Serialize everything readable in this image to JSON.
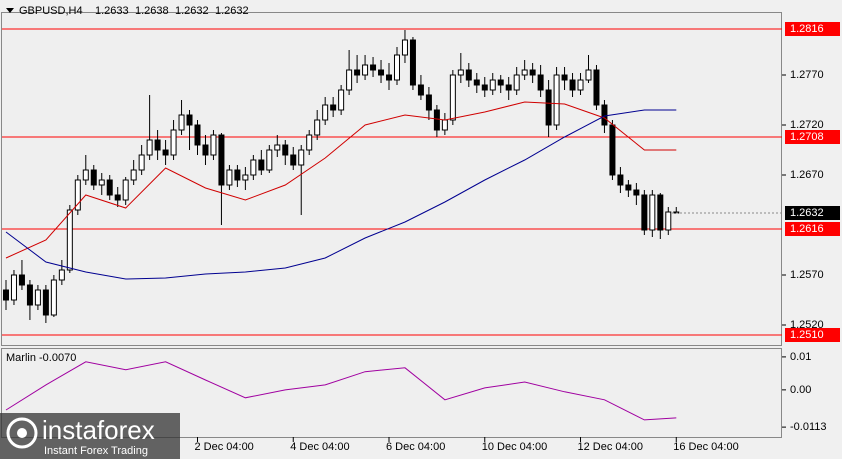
{
  "chart_data": [
    {
      "type": "candlestick",
      "title": "GBPUSD,H4",
      "open": [
        1.2555,
        1.2545,
        1.257,
        1.256,
        1.254,
        1.2555,
        1.253,
        1.2565,
        1.2575,
        1.2635,
        1.2665,
        1.2675,
        1.266,
        1.2665,
        1.265,
        1.2645,
        1.2665,
        1.2675,
        1.269,
        1.2705,
        1.2695,
        1.269,
        1.2715,
        1.273,
        1.272,
        1.27,
        1.269,
        1.271,
        1.266,
        1.2675,
        1.2665,
        1.267,
        1.2685,
        1.2675,
        1.2695,
        1.27,
        1.269,
        1.268,
        1.2695,
        1.271,
        1.2725,
        1.274,
        1.2735,
        1.2755,
        1.2775,
        1.277,
        1.278,
        1.2775,
        1.277,
        1.2765,
        1.279,
        1.2805,
        1.276,
        1.275,
        1.2735,
        1.2715,
        1.2725,
        1.277,
        1.2775,
        1.2765,
        1.276,
        1.2755,
        1.2765,
        1.276,
        1.2755,
        1.277,
        1.2775,
        1.277,
        1.2755,
        1.272,
        1.277,
        1.2765,
        1.2755,
        1.2765,
        1.2775,
        1.274,
        1.272,
        1.267,
        1.266,
        1.2655,
        1.265,
        1.2615,
        1.265,
        1.2615,
        1.2633
      ],
      "high": [
        1.2565,
        1.2575,
        1.2585,
        1.2565,
        1.256,
        1.256,
        1.257,
        1.2585,
        1.264,
        1.267,
        1.269,
        1.268,
        1.2672,
        1.267,
        1.2658,
        1.2668,
        1.2685,
        1.27,
        1.275,
        1.2715,
        1.2705,
        1.2725,
        1.2745,
        1.2735,
        1.2725,
        1.271,
        1.2715,
        1.2712,
        1.268,
        1.268,
        1.2678,
        1.269,
        1.2695,
        1.27,
        1.271,
        1.2705,
        1.2698,
        1.27,
        1.2715,
        1.2735,
        1.2748,
        1.2748,
        1.276,
        1.2795,
        1.279,
        1.279,
        1.2788,
        1.2785,
        1.2782,
        1.2798,
        1.2815,
        1.2808,
        1.277,
        1.2758,
        1.274,
        1.2732,
        1.2775,
        1.2792,
        1.2782,
        1.2772,
        1.2768,
        1.2772,
        1.277,
        1.2768,
        1.2778,
        1.2785,
        1.2782,
        1.278,
        1.2765,
        1.2778,
        1.2778,
        1.2772,
        1.2772,
        1.279,
        1.278,
        1.2745,
        1.2725,
        1.2678,
        1.2665,
        1.2662,
        1.2655,
        1.2655,
        1.2652,
        1.2638,
        1.2638
      ],
      "low": [
        1.2535,
        1.254,
        1.2555,
        1.2525,
        1.2535,
        1.2522,
        1.2528,
        1.256,
        1.2572,
        1.263,
        1.266,
        1.2655,
        1.265,
        1.2645,
        1.2638,
        1.264,
        1.266,
        1.267,
        1.2685,
        1.2685,
        1.268,
        1.2685,
        1.271,
        1.2695,
        1.269,
        1.268,
        1.2685,
        1.262,
        1.2655,
        1.2658,
        1.2655,
        1.2665,
        1.267,
        1.2672,
        1.2688,
        1.268,
        1.2675,
        1.263,
        1.269,
        1.2705,
        1.272,
        1.2728,
        1.273,
        1.275,
        1.2762,
        1.2765,
        1.2768,
        1.2762,
        1.2755,
        1.276,
        1.2782,
        1.2755,
        1.2745,
        1.2725,
        1.2708,
        1.271,
        1.272,
        1.2762,
        1.2758,
        1.2752,
        1.2748,
        1.275,
        1.2752,
        1.2745,
        1.275,
        1.2765,
        1.2762,
        1.2748,
        1.2708,
        1.2715,
        1.2755,
        1.2748,
        1.275,
        1.2762,
        1.2735,
        1.2712,
        1.2665,
        1.2652,
        1.2648,
        1.264,
        1.261,
        1.2608,
        1.2606,
        1.261,
        1.2632
      ],
      "close": [
        1.2545,
        1.257,
        1.256,
        1.254,
        1.2555,
        1.253,
        1.2565,
        1.2575,
        1.2635,
        1.2665,
        1.2675,
        1.266,
        1.2665,
        1.265,
        1.2645,
        1.2665,
        1.2675,
        1.269,
        1.2705,
        1.2695,
        1.269,
        1.2715,
        1.273,
        1.272,
        1.27,
        1.269,
        1.271,
        1.266,
        1.2675,
        1.2665,
        1.267,
        1.2685,
        1.2675,
        1.2695,
        1.27,
        1.269,
        1.268,
        1.2695,
        1.271,
        1.2725,
        1.274,
        1.2735,
        1.2755,
        1.2775,
        1.277,
        1.278,
        1.2775,
        1.277,
        1.2765,
        1.279,
        1.2805,
        1.276,
        1.275,
        1.2735,
        1.2715,
        1.2725,
        1.277,
        1.2775,
        1.2765,
        1.276,
        1.2755,
        1.2765,
        1.276,
        1.2755,
        1.277,
        1.2775,
        1.277,
        1.2755,
        1.272,
        1.277,
        1.2765,
        1.2755,
        1.2765,
        1.2775,
        1.274,
        1.272,
        1.267,
        1.266,
        1.2655,
        1.265,
        1.2615,
        1.265,
        1.2615,
        1.2633,
        1.2632
      ],
      "series": [
        {
          "color": "#d00000",
          "x": [
            0,
            5,
            10,
            15,
            20,
            25,
            30,
            35,
            40,
            45,
            50,
            55,
            60,
            65,
            70,
            75,
            80,
            84
          ],
          "values": [
            1.2587,
            1.2605,
            1.265,
            1.2637,
            1.2677,
            1.2657,
            1.2645,
            1.266,
            1.2687,
            1.272,
            1.273,
            1.2725,
            1.2733,
            1.2743,
            1.2741,
            1.2727,
            1.2695,
            1.2695
          ]
        },
        {
          "color": "#000090",
          "x": [
            0,
            5,
            10,
            15,
            20,
            25,
            30,
            35,
            40,
            45,
            50,
            55,
            60,
            65,
            70,
            75,
            80,
            84
          ],
          "values": [
            1.2613,
            1.2583,
            1.2573,
            1.2566,
            1.2567,
            1.2571,
            1.2573,
            1.2577,
            1.2587,
            1.2607,
            1.2623,
            1.2643,
            1.2665,
            1.2685,
            1.2708,
            1.2729,
            1.2735,
            1.2735
          ]
        }
      ],
      "levels": [
        1.2816,
        1.2708,
        1.2616,
        {
          "value": 1.251,
          "label": "1.2510"
        }
      ],
      "level_color": "#ff0000",
      "xlim": [
        -0.5,
        97.25
      ],
      "ylim": [
        1.25,
        1.2833
      ],
      "yticks": [
        {
          "value": 1.252,
          "label": "1.2520"
        },
        {
          "value": 1.257,
          "label": "1.2570"
        },
        {
          "value": 1.267,
          "label": "1.2670"
        },
        {
          "value": 1.272,
          "label": "1.2720"
        },
        {
          "value": 1.277,
          "label": "1.2770"
        }
      ],
      "xticks": [
        {
          "value": 24,
          "label": "2 Dec 04:00"
        },
        {
          "value": 36,
          "label": "4 Dec 04:00"
        },
        {
          "value": 48,
          "label": "6 Dec 04:00"
        },
        {
          "value": 60,
          "label": "10 Dec 04:00"
        },
        {
          "value": 72,
          "label": "12 Dec 04:00"
        },
        {
          "value": 84,
          "label": "16 Dec 04:00"
        }
      ],
      "grid": false
    },
    {
      "type": "line",
      "title": "Marlin -0.0070",
      "series": [
        {
          "color": "#a000a0",
          "x": [
            0,
            5,
            10,
            15,
            20,
            25,
            30,
            35,
            40,
            45,
            50,
            55,
            60,
            65,
            70,
            75,
            80,
            84
          ],
          "values": [
            -0.0061,
            0.0015,
            0.0085,
            0.0061,
            0.0085,
            0.003,
            -0.0024,
            0,
            0.0015,
            0.0055,
            0.0067,
            -0.003,
            0.0006,
            0.0024,
            -0.0006,
            -0.003,
            -0.0091,
            -0.0085
          ]
        }
      ],
      "xlim": [
        -0.5,
        97.25
      ],
      "ylim": [
        -0.0143,
        0.0127
      ],
      "yticks": [
        -0.0113,
        {
          "value": 0,
          "label": "0.00"
        },
        0.01
      ]
    }
  ],
  "watermark": {
    "brand": "instaforex",
    "tagline": "Instant Forex Trading"
  }
}
